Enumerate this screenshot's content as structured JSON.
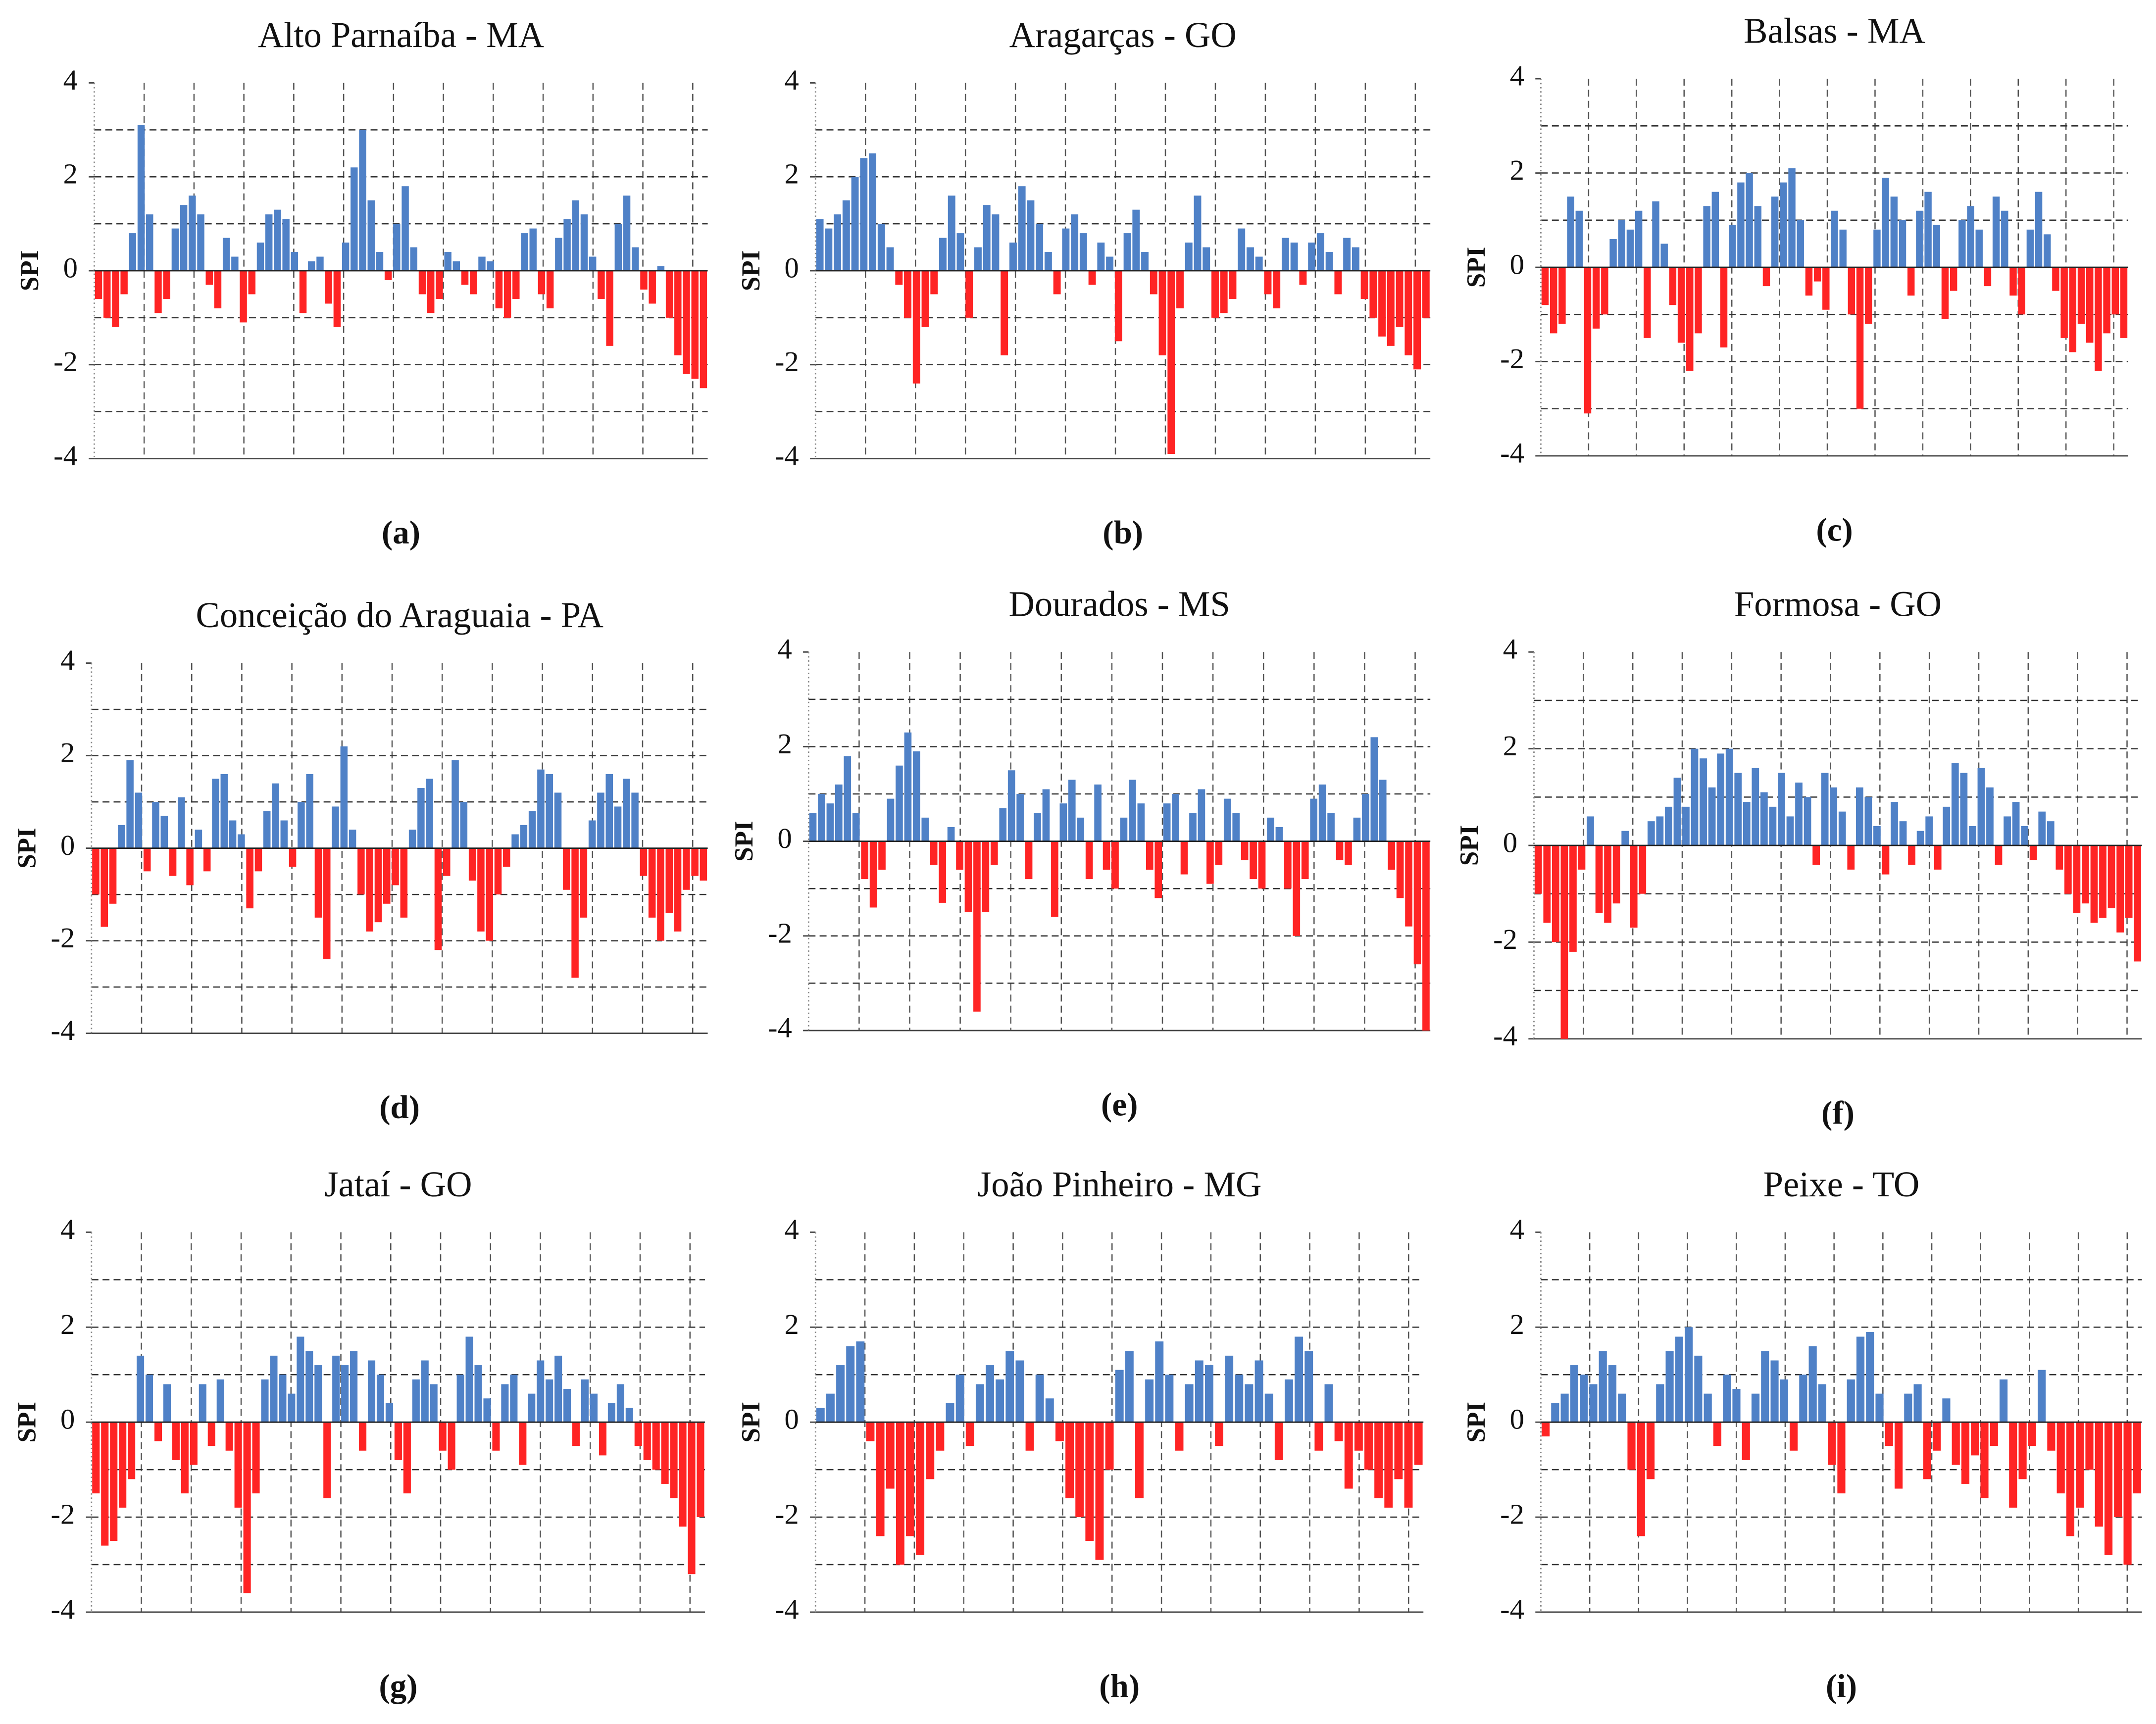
{
  "chart_data": [
    {
      "type": "bar",
      "title": "Alto Parnaíba - MA",
      "panel_label": "(a)",
      "ylabel": "SPI",
      "ylim": [
        -4,
        4
      ],
      "yticks": [
        -4,
        -2,
        0,
        2,
        4
      ],
      "ygrid": [
        -3,
        -2,
        -1,
        1,
        2,
        3
      ],
      "color_positive": "#4f81c7",
      "color_negative": "#ff2424",
      "values": [
        -0.6,
        -1.0,
        -1.2,
        -0.5,
        0.8,
        3.1,
        1.2,
        -0.9,
        -0.6,
        0.9,
        1.4,
        1.6,
        1.2,
        -0.3,
        -0.8,
        0.7,
        0.3,
        -1.1,
        -0.5,
        0.6,
        1.2,
        1.3,
        1.1,
        0.4,
        -0.9,
        0.2,
        0.3,
        -0.7,
        -1.2,
        0.6,
        2.2,
        3.0,
        1.5,
        0.4,
        -0.2,
        1.0,
        1.8,
        0.5,
        -0.5,
        -0.9,
        -0.6,
        0.4,
        0.2,
        -0.3,
        -0.5,
        0.3,
        0.2,
        -0.8,
        -1.0,
        -0.6,
        0.8,
        0.9,
        -0.5,
        -0.8,
        0.7,
        1.1,
        1.5,
        1.2,
        0.3,
        -0.6,
        -1.6,
        1.0,
        1.6,
        0.5,
        -0.4,
        -0.7,
        0.1,
        -1.0,
        -1.8,
        -2.2,
        -2.3,
        -2.5
      ]
    },
    {
      "type": "bar",
      "title": "Aragarças - GO",
      "panel_label": "(b)",
      "ylabel": "SPI",
      "ylim": [
        -4,
        4
      ],
      "yticks": [
        -4,
        -2,
        0,
        2,
        4
      ],
      "ygrid": [
        -3,
        -2,
        -1,
        1,
        2,
        3
      ],
      "color_positive": "#4f81c7",
      "color_negative": "#ff2424",
      "values": [
        1.1,
        0.9,
        1.2,
        1.5,
        2.0,
        2.4,
        2.5,
        1.0,
        0.5,
        -0.3,
        -1.0,
        -2.4,
        -1.2,
        -0.5,
        0.7,
        1.6,
        0.8,
        -1.0,
        0.5,
        1.4,
        1.2,
        -1.8,
        0.6,
        1.8,
        1.5,
        1.0,
        0.4,
        -0.5,
        0.9,
        1.2,
        0.8,
        -0.3,
        0.6,
        0.3,
        -1.5,
        0.8,
        1.3,
        0.4,
        -0.5,
        -1.8,
        -3.9,
        -0.8,
        0.6,
        1.6,
        0.5,
        -1.0,
        -0.9,
        -0.6,
        0.9,
        0.5,
        0.3,
        -0.5,
        -0.8,
        0.7,
        0.6,
        -0.3,
        0.6,
        0.8,
        0.4,
        -0.5,
        0.7,
        0.5,
        -0.6,
        -1.0,
        -1.4,
        -1.6,
        -1.2,
        -1.8,
        -2.1,
        -1.0
      ]
    },
    {
      "type": "bar",
      "title": "Balsas - MA",
      "panel_label": "(c)",
      "ylabel": "SPI",
      "ylim": [
        -4,
        4
      ],
      "yticks": [
        -4,
        -2,
        0,
        2,
        4
      ],
      "ygrid": [
        -3,
        -2,
        -1,
        1,
        2,
        3
      ],
      "color_positive": "#4f81c7",
      "color_negative": "#ff2424",
      "values": [
        -0.8,
        -1.4,
        -1.2,
        1.5,
        1.2,
        -3.1,
        -1.3,
        -1.0,
        0.6,
        1.0,
        0.8,
        1.2,
        -1.5,
        1.4,
        0.5,
        -0.8,
        -1.6,
        -2.2,
        -1.4,
        1.3,
        1.6,
        -1.7,
        0.9,
        1.8,
        2.0,
        1.3,
        -0.4,
        1.5,
        1.8,
        2.1,
        1.0,
        -0.6,
        -0.3,
        -0.9,
        1.2,
        0.8,
        -1.0,
        -3.0,
        -1.2,
        0.8,
        1.9,
        1.5,
        1.0,
        -0.6,
        1.2,
        1.6,
        0.9,
        -1.1,
        -0.5,
        1.0,
        1.3,
        0.8,
        -0.4,
        1.5,
        1.2,
        -0.6,
        -1.0,
        0.8,
        1.6,
        0.7,
        -0.5,
        -1.5,
        -1.8,
        -1.2,
        -1.6,
        -2.2,
        -1.4,
        -1.0,
        -1.5
      ]
    },
    {
      "type": "bar",
      "title": "Conceição do Araguaia - PA",
      "panel_label": "(d)",
      "ylabel": "SPI",
      "ylim": [
        -4,
        4
      ],
      "yticks": [
        -4,
        -2,
        0,
        2,
        4
      ],
      "ygrid": [
        -3,
        -2,
        -1,
        1,
        2,
        3
      ],
      "color_positive": "#4f81c7",
      "color_negative": "#ff2424",
      "values": [
        -1.0,
        -1.7,
        -1.2,
        0.5,
        1.9,
        1.2,
        -0.5,
        1.0,
        0.7,
        -0.6,
        1.1,
        -0.8,
        0.4,
        -0.5,
        1.5,
        1.6,
        0.6,
        0.3,
        -1.3,
        -0.5,
        0.8,
        1.4,
        0.6,
        -0.4,
        1.0,
        1.6,
        -1.5,
        -2.4,
        0.9,
        2.2,
        0.4,
        -1.0,
        -1.8,
        -1.6,
        -1.2,
        -0.8,
        -1.5,
        0.4,
        1.3,
        1.5,
        -2.2,
        -0.6,
        1.9,
        1.0,
        -0.7,
        -1.8,
        -2.0,
        -1.0,
        -0.4,
        0.3,
        0.5,
        0.8,
        1.7,
        1.6,
        1.2,
        -0.9,
        -2.8,
        -1.5,
        0.6,
        1.2,
        1.6,
        0.9,
        1.5,
        1.2,
        -0.6,
        -1.5,
        -2.0,
        -1.4,
        -1.8,
        -0.9,
        -0.6,
        -0.7
      ]
    },
    {
      "type": "bar",
      "title": "Dourados - MS",
      "panel_label": "(e)",
      "ylabel": "SPI",
      "ylim": [
        -4,
        4
      ],
      "yticks": [
        -4,
        -2,
        0,
        2,
        4
      ],
      "ygrid": [
        -3,
        -2,
        -1,
        1,
        2,
        3
      ],
      "color_positive": "#4f81c7",
      "color_negative": "#ff2424",
      "values": [
        0.6,
        1.0,
        0.8,
        1.2,
        1.8,
        0.6,
        -0.8,
        -1.4,
        -0.6,
        0.9,
        1.6,
        2.3,
        1.9,
        0.5,
        -0.5,
        -1.3,
        0.3,
        -0.6,
        -1.5,
        -3.6,
        -1.5,
        -0.5,
        0.7,
        1.5,
        1.0,
        -0.8,
        0.6,
        1.1,
        -1.6,
        0.8,
        1.3,
        0.5,
        -0.8,
        1.2,
        -0.6,
        -1.0,
        0.5,
        1.3,
        0.8,
        -0.6,
        -1.2,
        0.8,
        1.0,
        -0.7,
        0.6,
        1.1,
        -0.9,
        -0.5,
        0.9,
        0.6,
        -0.4,
        -0.8,
        -1.0,
        0.5,
        0.3,
        -1.0,
        -2.0,
        -0.8,
        0.9,
        1.2,
        0.6,
        -0.4,
        -0.5,
        0.5,
        1.0,
        2.2,
        1.3,
        -0.6,
        -1.2,
        -1.8,
        -2.6,
        -4.0
      ]
    },
    {
      "type": "bar",
      "title": "Formosa - GO",
      "panel_label": "(f)",
      "ylabel": "SPI",
      "ylim": [
        -4,
        4
      ],
      "yticks": [
        -4,
        -2,
        0,
        2,
        4
      ],
      "ygrid": [
        -3,
        -2,
        -1,
        1,
        2,
        3
      ],
      "color_positive": "#4f81c7",
      "color_negative": "#ff2424",
      "values": [
        -1.0,
        -1.6,
        -2.0,
        -4.0,
        -2.2,
        -0.5,
        0.6,
        -1.4,
        -1.6,
        -1.2,
        0.3,
        -1.7,
        -1.0,
        0.5,
        0.6,
        0.8,
        1.4,
        0.8,
        2.0,
        1.8,
        1.2,
        1.9,
        2.0,
        1.5,
        0.9,
        1.6,
        1.1,
        0.8,
        1.5,
        0.6,
        1.3,
        1.0,
        -0.4,
        1.5,
        1.2,
        0.7,
        -0.5,
        1.2,
        1.0,
        0.4,
        -0.6,
        0.9,
        0.5,
        -0.4,
        0.3,
        0.6,
        -0.5,
        0.8,
        1.7,
        1.5,
        0.4,
        1.6,
        1.2,
        -0.4,
        0.6,
        0.9,
        0.4,
        -0.3,
        0.7,
        0.5,
        -0.5,
        -1.0,
        -1.4,
        -1.2,
        -1.6,
        -1.5,
        -1.3,
        -1.8,
        -1.5,
        -2.4
      ]
    },
    {
      "type": "bar",
      "title": "Jataí - GO",
      "panel_label": "(g)",
      "ylabel": "SPI",
      "ylim": [
        -4,
        4
      ],
      "yticks": [
        -4,
        -2,
        0,
        2,
        4
      ],
      "ygrid": [
        -3,
        -2,
        -1,
        1,
        2,
        3
      ],
      "color_positive": "#4f81c7",
      "color_negative": "#ff2424",
      "values": [
        -1.5,
        -2.6,
        -2.5,
        -1.8,
        -1.2,
        1.4,
        1.0,
        -0.4,
        0.8,
        -0.8,
        -1.5,
        -0.9,
        0.8,
        -0.5,
        0.9,
        -0.6,
        -1.8,
        -3.6,
        -1.5,
        0.9,
        1.4,
        1.0,
        0.6,
        1.8,
        1.5,
        1.2,
        -1.6,
        1.4,
        1.2,
        1.5,
        -0.6,
        1.3,
        1.0,
        0.4,
        -0.8,
        -1.5,
        0.9,
        1.3,
        0.8,
        -0.6,
        -1.0,
        1.0,
        1.8,
        1.2,
        0.5,
        -0.6,
        0.8,
        1.0,
        -0.9,
        0.6,
        1.3,
        0.9,
        1.4,
        0.7,
        -0.5,
        0.9,
        0.6,
        -0.7,
        0.4,
        0.8,
        0.3,
        -0.5,
        -0.8,
        -1.0,
        -1.3,
        -1.6,
        -2.2,
        -3.2,
        -2.0
      ]
    },
    {
      "type": "bar",
      "title": "João Pinheiro - MG",
      "panel_label": "(h)",
      "ylabel": "SPI",
      "ylim": [
        -4,
        4
      ],
      "yticks": [
        -4,
        -2,
        0,
        2,
        4
      ],
      "ygrid": [
        -3,
        -2,
        -1,
        1,
        2,
        3
      ],
      "color_positive": "#4f81c7",
      "color_negative": "#ff2424",
      "values": [
        0.3,
        0.6,
        1.2,
        1.6,
        1.7,
        -0.4,
        -2.4,
        -1.4,
        -3.0,
        -2.4,
        -2.8,
        -1.2,
        -0.6,
        0.4,
        1.0,
        -0.5,
        0.8,
        1.2,
        0.9,
        1.5,
        1.3,
        -0.6,
        1.0,
        0.5,
        -0.4,
        -1.6,
        -2.0,
        -2.5,
        -2.9,
        -1.0,
        1.1,
        1.5,
        -1.6,
        0.9,
        1.7,
        1.0,
        -0.6,
        0.8,
        1.3,
        1.2,
        -0.5,
        1.4,
        1.0,
        0.8,
        1.3,
        0.6,
        -0.8,
        0.9,
        1.8,
        1.5,
        -0.6,
        0.8,
        -0.4,
        -1.4,
        -0.6,
        -1.0,
        -1.6,
        -1.8,
        -1.2,
        -1.8,
        -0.9
      ]
    },
    {
      "type": "bar",
      "title": "Peixe - TO",
      "panel_label": "(i)",
      "ylabel": "SPI",
      "ylim": [
        -4,
        4
      ],
      "yticks": [
        -4,
        -2,
        0,
        2,
        4
      ],
      "ygrid": [
        -3,
        -2,
        -1,
        1,
        2,
        3
      ],
      "color_positive": "#4f81c7",
      "color_negative": "#ff2424",
      "values": [
        -0.3,
        0.4,
        0.6,
        1.2,
        1.0,
        0.8,
        1.5,
        1.2,
        0.6,
        -1.0,
        -2.4,
        -1.2,
        0.8,
        1.5,
        1.8,
        2.0,
        1.4,
        0.6,
        -0.5,
        1.0,
        0.7,
        -0.8,
        0.6,
        1.5,
        1.3,
        0.9,
        -0.6,
        1.0,
        1.6,
        0.8,
        -0.9,
        -1.5,
        0.9,
        1.8,
        1.9,
        0.6,
        -0.5,
        -1.4,
        0.6,
        0.8,
        -1.2,
        -0.6,
        0.5,
        -0.9,
        -1.3,
        -0.7,
        -1.6,
        -0.5,
        0.9,
        -1.8,
        -1.2,
        -0.5,
        1.1,
        -0.6,
        -1.5,
        -2.4,
        -1.8,
        -1.0,
        -2.2,
        -2.8,
        -2.0,
        -3.0,
        -1.5
      ]
    }
  ]
}
